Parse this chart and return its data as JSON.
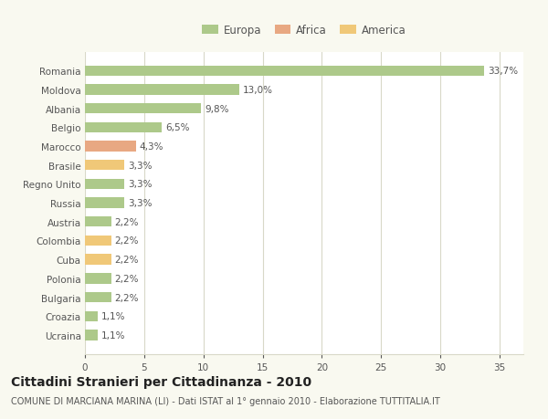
{
  "countries": [
    "Romania",
    "Moldova",
    "Albania",
    "Belgio",
    "Marocco",
    "Brasile",
    "Regno Unito",
    "Russia",
    "Austria",
    "Colombia",
    "Cuba",
    "Polonia",
    "Bulgaria",
    "Croazia",
    "Ucraina"
  ],
  "values": [
    33.7,
    13.0,
    9.8,
    6.5,
    4.3,
    3.3,
    3.3,
    3.3,
    2.2,
    2.2,
    2.2,
    2.2,
    2.2,
    1.1,
    1.1
  ],
  "labels": [
    "33,7%",
    "13,0%",
    "9,8%",
    "6,5%",
    "4,3%",
    "3,3%",
    "3,3%",
    "3,3%",
    "2,2%",
    "2,2%",
    "2,2%",
    "2,2%",
    "2,2%",
    "1,1%",
    "1,1%"
  ],
  "categories": [
    "Europa",
    "Africa",
    "America"
  ],
  "bar_colors": [
    "#adc98a",
    "#adc98a",
    "#adc98a",
    "#adc98a",
    "#e8a882",
    "#f0c878",
    "#adc98a",
    "#adc98a",
    "#adc98a",
    "#f0c878",
    "#f0c878",
    "#adc98a",
    "#adc98a",
    "#adc98a",
    "#adc98a"
  ],
  "legend_colors": [
    "#adc98a",
    "#e8a882",
    "#f0c878"
  ],
  "title": "Cittadini Stranieri per Cittadinanza - 2010",
  "subtitle": "COMUNE DI MARCIANA MARINA (LI) - Dati ISTAT al 1° gennaio 2010 - Elaborazione TUTTITALIA.IT",
  "xlim": [
    0,
    37
  ],
  "xticks": [
    0,
    5,
    10,
    15,
    20,
    25,
    30,
    35
  ],
  "background_color": "#f9f9f0",
  "plot_bg_color": "#ffffff",
  "grid_color": "#d8d8c8",
  "bar_height": 0.55,
  "label_fontsize": 7.5,
  "title_fontsize": 10,
  "subtitle_fontsize": 7,
  "legend_fontsize": 8.5
}
